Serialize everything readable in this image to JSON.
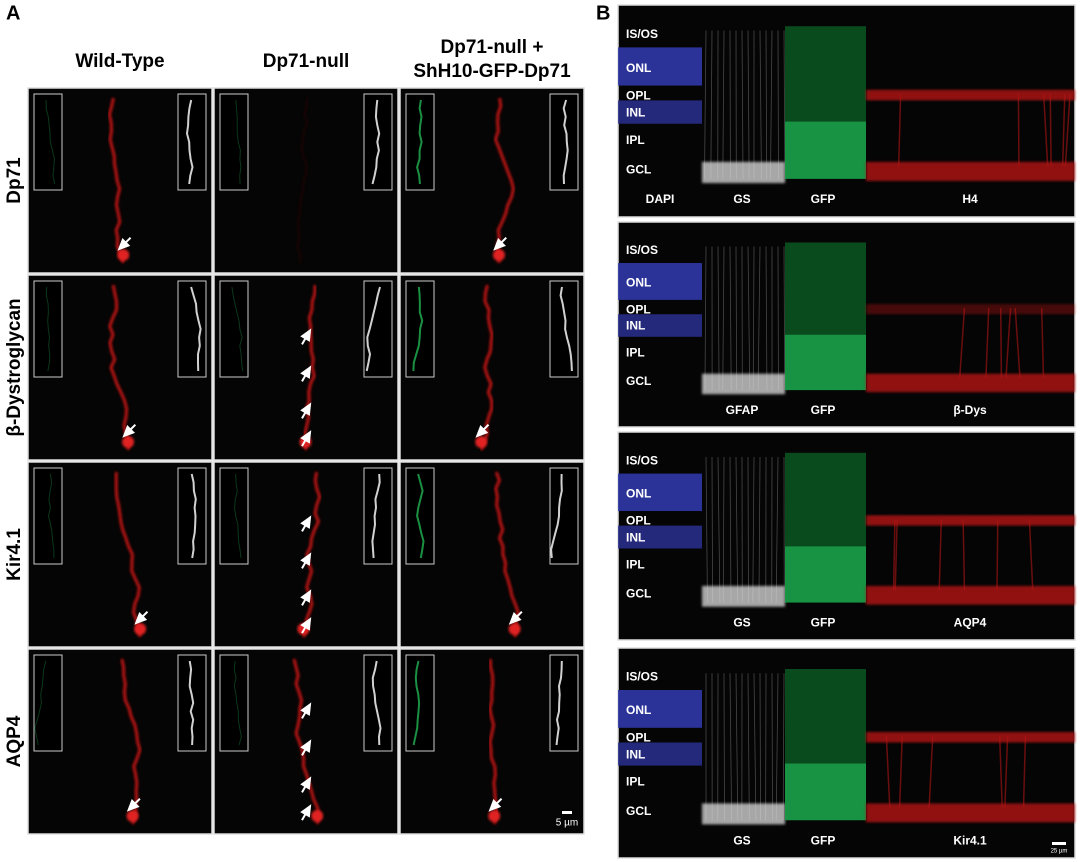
{
  "panel_a": {
    "label": "A",
    "column_headers": [
      [
        "Wild-Type"
      ],
      [
        "Dp71-null"
      ],
      [
        "Dp71-null +",
        "ShH10-GFP-Dp71"
      ]
    ],
    "row_labels": [
      "Dp71",
      "β-Dystroglycan",
      "Kir4.1",
      "AQP4"
    ],
    "scale_bar": "5 µm"
  },
  "panel_b": {
    "label": "B",
    "layers": [
      "IS/OS",
      "ONL",
      "OPL",
      "INL",
      "IPL",
      "GCL"
    ],
    "panels": [
      {
        "channels": [
          "DAPI",
          "GS",
          "GFP",
          "H4"
        ]
      },
      {
        "channels": [
          "GFAP",
          "GFP",
          "β-Dys"
        ]
      },
      {
        "channels": [
          "GS",
          "GFP",
          "AQP4"
        ]
      },
      {
        "channels": [
          "GS",
          "GFP",
          "Kir4.1"
        ]
      }
    ],
    "scale_bar": "25 µm"
  }
}
